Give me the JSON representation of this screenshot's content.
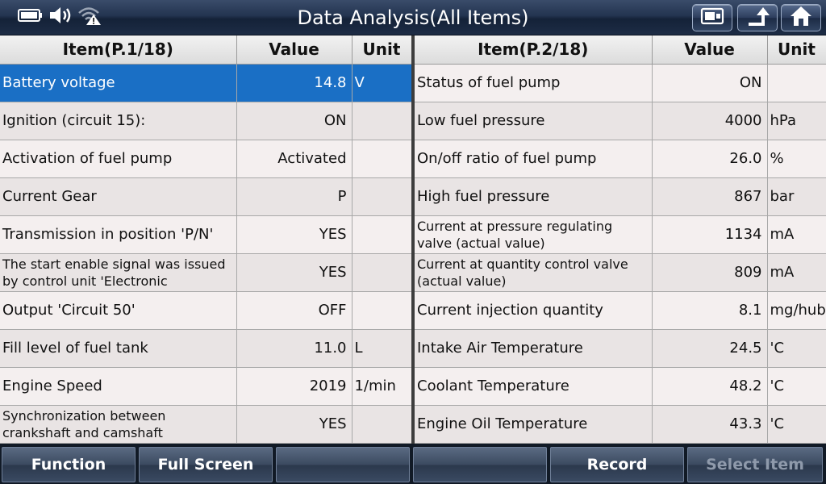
{
  "header": {
    "title": "Data Analysis(All Items)"
  },
  "left_table": {
    "headers": [
      "Item(P.1/18)",
      "Value",
      "Unit"
    ],
    "rows": [
      {
        "item": "Battery voltage",
        "value": "14.8",
        "unit": "V"
      },
      {
        "item": "Ignition (circuit 15):",
        "value": "ON",
        "unit": ""
      },
      {
        "item": "Activation of fuel pump",
        "value": "Activated",
        "unit": ""
      },
      {
        "item": "Current Gear",
        "value": "P",
        "unit": ""
      },
      {
        "item": "Transmission in position 'P/N'",
        "value": "YES",
        "unit": ""
      },
      {
        "item": "The start enable signal was issued by control unit 'Electronic",
        "value": "YES",
        "unit": ""
      },
      {
        "item": "Output 'Circuit 50'",
        "value": "OFF",
        "unit": ""
      },
      {
        "item": "Fill level of fuel tank",
        "value": "11.0",
        "unit": "L"
      },
      {
        "item": "Engine Speed",
        "value": "2019",
        "unit": "1/min"
      },
      {
        "item": "Synchronization between crankshaft and camshaft",
        "value": "YES",
        "unit": ""
      }
    ]
  },
  "right_table": {
    "headers": [
      "Item(P.2/18)",
      "Value",
      "Unit"
    ],
    "rows": [
      {
        "item": "Status of fuel pump",
        "value": "ON",
        "unit": ""
      },
      {
        "item": "Low fuel pressure",
        "value": "4000",
        "unit": "hPa"
      },
      {
        "item": "On/off ratio of fuel pump",
        "value": "26.0",
        "unit": "%"
      },
      {
        "item": "High fuel pressure",
        "value": "867",
        "unit": "bar"
      },
      {
        "item": "Current at pressure regulating valve (actual value)",
        "value": "1134",
        "unit": "mA"
      },
      {
        "item": "Current at quantity control valve (actual value)",
        "value": "809",
        "unit": "mA"
      },
      {
        "item": "Current injection quantity",
        "value": "8.1",
        "unit": "mg/hub"
      },
      {
        "item": "Intake Air Temperature",
        "value": "24.5",
        "unit": "'C"
      },
      {
        "item": "Coolant Temperature",
        "value": "48.2",
        "unit": "'C"
      },
      {
        "item": "Engine Oil Temperature",
        "value": "43.3",
        "unit": "'C"
      }
    ]
  },
  "footer": {
    "buttons": [
      {
        "label": "Function",
        "enabled": true
      },
      {
        "label": "Full Screen",
        "enabled": true
      },
      {
        "label": "",
        "enabled": true
      },
      {
        "label": "",
        "enabled": true
      },
      {
        "label": "Record",
        "enabled": true
      },
      {
        "label": "Select Item",
        "enabled": false
      }
    ]
  },
  "colors": {
    "selected_row": "#1a6fc5",
    "topbar": "#233450"
  },
  "icons": [
    "battery-icon",
    "volume-icon",
    "wifi-warning-icon",
    "screenshot-icon",
    "back-up-icon",
    "home-icon"
  ]
}
